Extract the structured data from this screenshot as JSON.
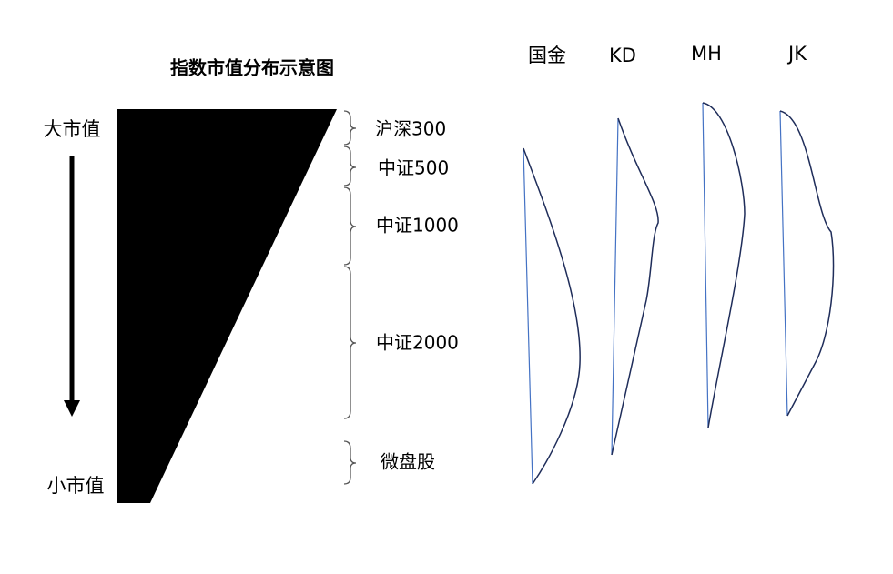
{
  "title": "指数市值分布示意图",
  "axis": {
    "top": "大市值",
    "bottom": "小市值"
  },
  "segments": [
    "沪深300",
    "中证500",
    "中证1000",
    "中证2000",
    "微盘股"
  ],
  "firms": [
    "国金",
    "KD",
    "MH",
    "JK"
  ]
}
